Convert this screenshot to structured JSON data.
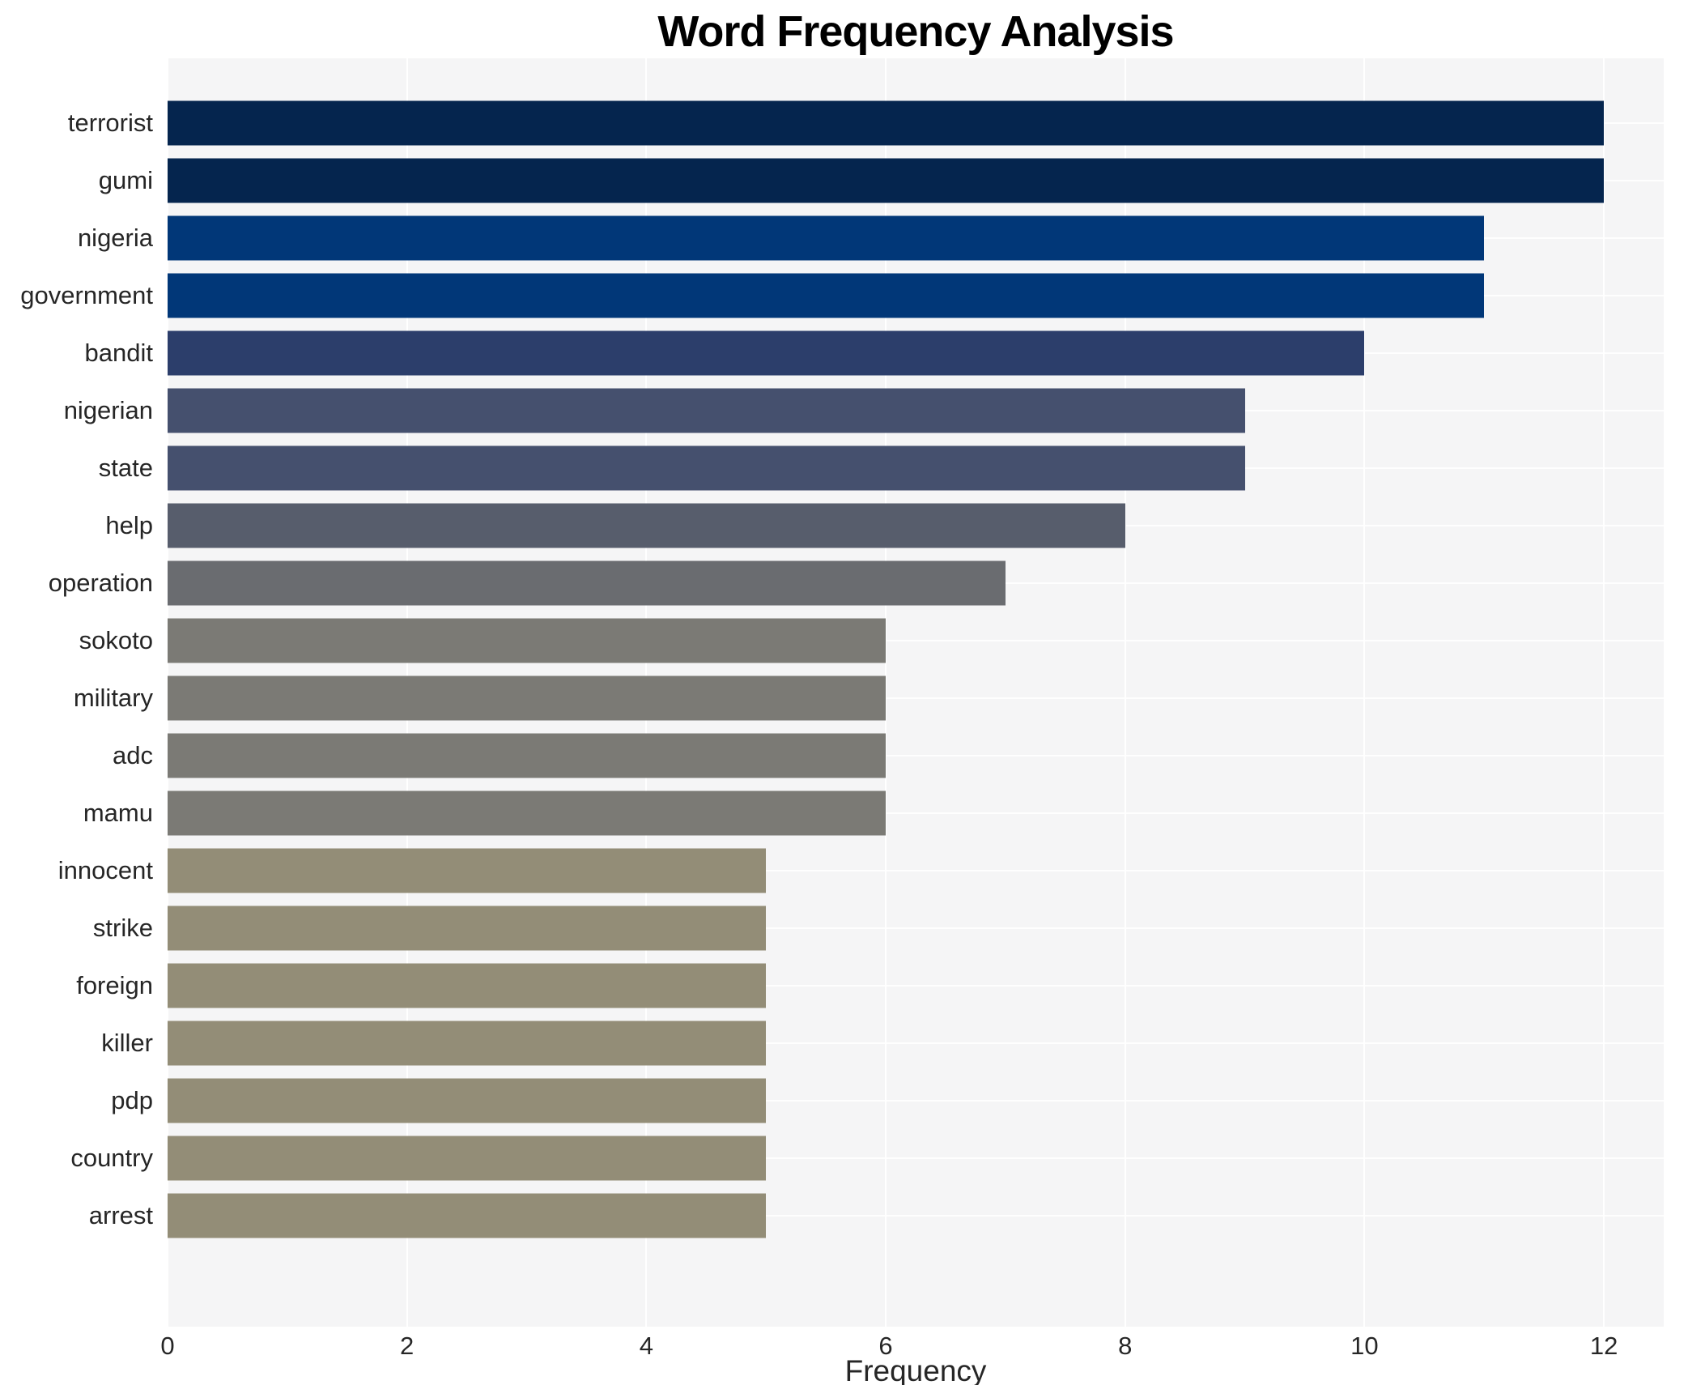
{
  "title": "Word Frequency Analysis",
  "chart_data": {
    "type": "bar",
    "orientation": "horizontal",
    "title": "Word Frequency Analysis",
    "xlabel": "Frequency",
    "ylabel": "",
    "categories": [
      "terrorist",
      "gumi",
      "nigeria",
      "government",
      "bandit",
      "nigerian",
      "state",
      "help",
      "operation",
      "sokoto",
      "military",
      "adc",
      "mamu",
      "innocent",
      "strike",
      "foreign",
      "killer",
      "pdp",
      "country",
      "arrest"
    ],
    "values": [
      12,
      12,
      11,
      11,
      10,
      9,
      9,
      8,
      7,
      6,
      6,
      6,
      6,
      5,
      5,
      5,
      5,
      5,
      5,
      5
    ],
    "bar_colors": [
      "#05254e",
      "#05254e",
      "#013778",
      "#013778",
      "#2c3e6b",
      "#45506e",
      "#45506e",
      "#575d6c",
      "#6a6c70",
      "#7b7a75",
      "#7b7a75",
      "#7b7a75",
      "#7b7a75",
      "#938d77",
      "#938d77",
      "#938d77",
      "#938d77",
      "#938d77",
      "#938d77",
      "#938d77"
    ],
    "x_ticks": [
      0,
      2,
      4,
      6,
      8,
      10,
      12
    ],
    "xlim": [
      0,
      12.5
    ],
    "grid": true,
    "legend_position": "none",
    "plot_background": "#f5f5f6",
    "grid_color": "#ffffff",
    "text_color": "#262626",
    "title_color": "#000000"
  }
}
